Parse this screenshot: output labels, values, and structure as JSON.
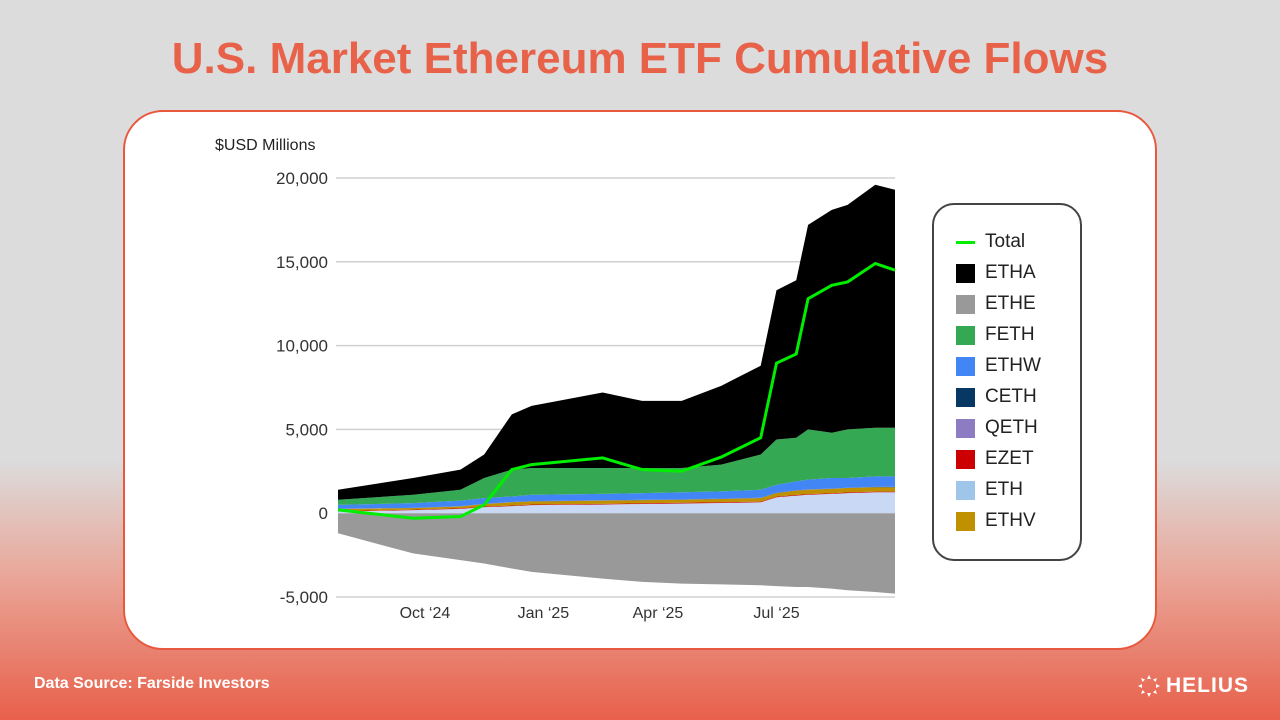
{
  "title": "U.S. Market Ethereum ETF Cumulative Flows",
  "footer": {
    "source": "Data Source: Farside Investors",
    "brand": "HELIUS"
  },
  "chart_data": {
    "type": "area",
    "stacked": true,
    "title": "U.S. Market Ethereum ETF Cumulative Flows",
    "ylabel": "$USD Millions",
    "xlabel": "",
    "x_unit": "months since Oct 2024",
    "xlim": [
      -1.9,
      12.2
    ],
    "ylim": [
      -5000,
      20000
    ],
    "yticks": [
      {
        "v": 20000,
        "label": "20,000"
      },
      {
        "v": 15000,
        "label": "15,000"
      },
      {
        "v": 10000,
        "label": "10,000"
      },
      {
        "v": 5000,
        "label": "5,000"
      },
      {
        "v": 0,
        "label": "0"
      },
      {
        "v": -5000,
        "label": "-5,000"
      }
    ],
    "xticks": [
      {
        "v": 0.3,
        "label": "Oct ‘24"
      },
      {
        "v": 3.3,
        "label": "Jan ‘25"
      },
      {
        "v": 6.2,
        "label": "Apr ‘25"
      },
      {
        "v": 9.2,
        "label": "Jul ‘25"
      }
    ],
    "grid": true,
    "legend_position": "right",
    "x": [
      -1.9,
      0,
      1.2,
      1.8,
      2.5,
      3,
      4.8,
      5.8,
      6.8,
      7.8,
      8.8,
      9.2,
      9.7,
      10,
      10.6,
      11,
      11.7,
      12.2
    ],
    "series": [
      {
        "name": "ETH",
        "color": "#c9d9f5",
        "values": [
          100,
          180,
          260,
          360,
          420,
          480,
          520,
          550,
          580,
          610,
          650,
          950,
          1050,
          1100,
          1150,
          1200,
          1250,
          1250
        ]
      },
      {
        "name": "EZET",
        "color": "#cc0000",
        "values": [
          30,
          30,
          35,
          40,
          40,
          40,
          40,
          40,
          40,
          40,
          40,
          40,
          40,
          40,
          40,
          40,
          40,
          40
        ]
      },
      {
        "name": "ETHV",
        "color": "#bf9000",
        "values": [
          120,
          90,
          105,
          140,
          190,
          180,
          190,
          190,
          180,
          200,
          210,
          210,
          260,
          260,
          260,
          260,
          260,
          260
        ]
      },
      {
        "name": "CETH",
        "color": "#073763",
        "values": [
          10,
          10,
          10,
          10,
          10,
          10,
          10,
          10,
          10,
          10,
          10,
          10,
          10,
          10,
          10,
          10,
          10,
          10
        ]
      },
      {
        "name": "QETH",
        "color": "#8e7cc3",
        "values": [
          10,
          10,
          10,
          10,
          10,
          10,
          10,
          10,
          10,
          10,
          10,
          10,
          10,
          10,
          10,
          10,
          10,
          10
        ]
      },
      {
        "name": "ETHW",
        "color": "#4285f4",
        "values": [
          230,
          280,
          330,
          340,
          330,
          380,
          380,
          400,
          430,
          430,
          480,
          480,
          530,
          580,
          630,
          580,
          630,
          630
        ]
      },
      {
        "name": "FETH",
        "color": "#34a853",
        "values": [
          300,
          500,
          650,
          1200,
          1600,
          1600,
          1550,
          1500,
          1450,
          1600,
          2100,
          2700,
          2600,
          3000,
          2700,
          2900,
          2900,
          2900
        ]
      },
      {
        "name": "ETHA",
        "color": "#000000",
        "values": [
          600,
          1000,
          1200,
          1400,
          3300,
          3700,
          4500,
          4000,
          4000,
          4700,
          5300,
          8900,
          9400,
          12200,
          13300,
          13400,
          14500,
          14200
        ]
      },
      {
        "name": "ETHE",
        "color": "#999999",
        "values": [
          -1200,
          -2400,
          -2800,
          -3000,
          -3300,
          -3500,
          -3900,
          -4100,
          -4200,
          -4250,
          -4300,
          -4350,
          -4400,
          -4400,
          -4500,
          -4600,
          -4700,
          -4800
        ]
      }
    ],
    "total": {
      "name": "Total",
      "color": "#00ee00"
    }
  },
  "legend": [
    {
      "name": "Total",
      "color": "#00ee00",
      "kind": "line"
    },
    {
      "name": "ETHA",
      "color": "#000000"
    },
    {
      "name": "ETHE",
      "color": "#999999"
    },
    {
      "name": "FETH",
      "color": "#34a853"
    },
    {
      "name": "ETHW",
      "color": "#4285f4"
    },
    {
      "name": "CETH",
      "color": "#073763"
    },
    {
      "name": "QETH",
      "color": "#8e7cc3"
    },
    {
      "name": "EZET",
      "color": "#cc0000"
    },
    {
      "name": "ETH",
      "color": "#9fc5e8"
    },
    {
      "name": "ETHV",
      "color": "#bf9000"
    }
  ]
}
